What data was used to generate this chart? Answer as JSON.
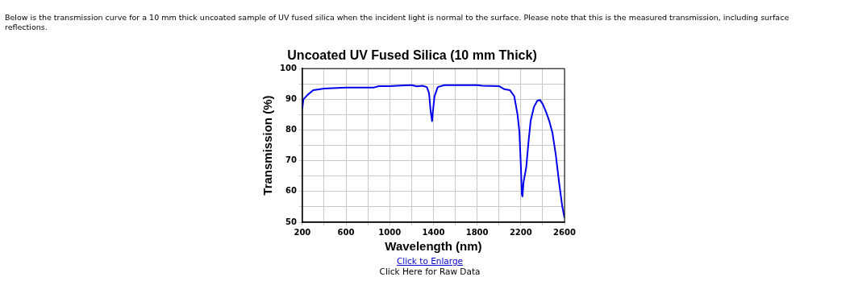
{
  "chart_data": {
    "type": "line",
    "title": "Uncoated UV Fused Silica (10 mm Thick)",
    "xlabel": "Wavelength (nm)",
    "ylabel": "Transmission (%)",
    "annotations": [
      "Below is the transmission curve for a 10 mm thick uncoated sample of UV fused silica when the incident light is normal to the surface. Please note that this is the measured transmission, including surface reflections.",
      "Click to Enlarge",
      "Click Here for Raw Data"
    ],
    "series": [
      {
        "color": "#0000ee",
        "x": [
          200,
          210,
          250,
          300,
          400,
          600,
          850,
          900,
          1000,
          1100,
          1200,
          1250,
          1300,
          1340,
          1360,
          1375,
          1388,
          1395,
          1410,
          1440,
          1500,
          1800,
          1850,
          2000,
          2050,
          2100,
          2140,
          2170,
          2187,
          2200,
          2210,
          2215,
          2225,
          2250,
          2270,
          2290,
          2320,
          2350,
          2375,
          2400,
          2430,
          2460,
          2490,
          2520,
          2550,
          2580,
          2600
        ],
        "values": [
          87,
          90,
          91.5,
          93,
          93.5,
          93.8,
          93.8,
          94.3,
          94.3,
          94.5,
          94.6,
          94.2,
          94.4,
          94,
          92,
          86,
          82.9,
          86,
          91,
          94,
          94.6,
          94.6,
          94.4,
          94.3,
          93.3,
          93,
          91,
          85,
          79.5,
          68.7,
          59,
          58.4,
          63,
          68,
          76,
          83,
          87.5,
          89.5,
          89.8,
          88.5,
          86,
          83,
          79,
          72,
          63,
          55,
          51.4
        ]
      }
    ],
    "xlim": [
      200,
      2600
    ],
    "ylim": [
      50,
      100
    ],
    "xticks": [
      200,
      {
        "value": 400,
        "label": null
      },
      600,
      {
        "value": 800,
        "label": null
      },
      1000,
      {
        "value": 1200,
        "label": null
      },
      1400,
      {
        "value": 1600,
        "label": null
      },
      1800,
      {
        "value": 2000,
        "label": null
      },
      2200,
      {
        "value": 2400,
        "label": null
      },
      2600
    ],
    "yticks": [
      50,
      {
        "value": 55,
        "label": null
      },
      60,
      {
        "value": 65,
        "label": null
      },
      70,
      {
        "value": 75,
        "label": null
      },
      80,
      {
        "value": 85,
        "label": null
      },
      90,
      {
        "value": 95,
        "label": null
      },
      100
    ],
    "grid": true,
    "legend": false,
    "marker": "none",
    "line_style": "solid"
  }
}
